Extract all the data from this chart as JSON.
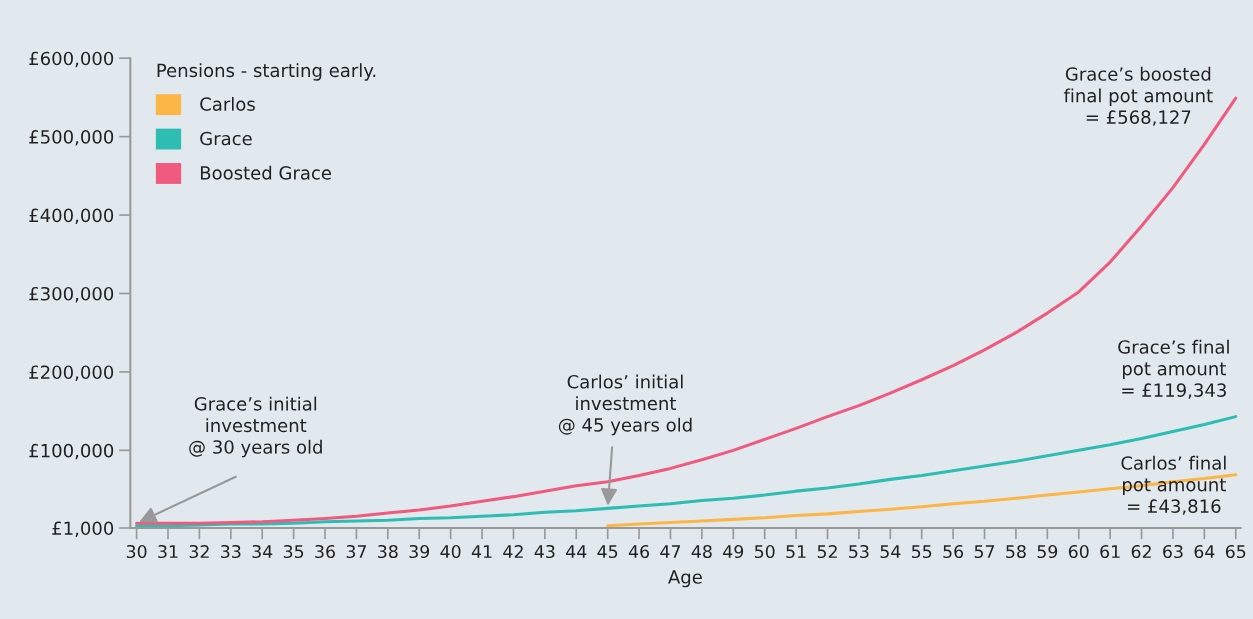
{
  "chart_data": {
    "type": "line",
    "xlabel": "Age",
    "legend_title": "Pensions - starting early.",
    "legend": "top left",
    "grid": false,
    "marker": "none",
    "line_style": "solid",
    "xlim": [
      29.8,
      65.15
    ],
    "xticks": [
      30,
      31,
      32,
      33,
      34,
      35,
      36,
      37,
      38,
      39,
      40,
      41,
      42,
      43,
      44,
      45,
      46,
      47,
      48,
      49,
      50,
      51,
      52,
      53,
      54,
      55,
      56,
      57,
      58,
      59,
      60,
      61,
      62,
      63,
      64,
      65
    ],
    "ylim": [
      1000,
      600000
    ],
    "yticks": [
      {
        "value": 1000,
        "label": "£1,000"
      },
      {
        "value": 100000,
        "label": "£100,000"
      },
      {
        "value": 200000,
        "label": "£200,000"
      },
      {
        "value": 300000,
        "label": "£300,000"
      },
      {
        "value": 400000,
        "label": "£400,000"
      },
      {
        "value": 500000,
        "label": "£500,000"
      },
      {
        "value": 600000,
        "label": "£600,000"
      }
    ],
    "series": [
      {
        "name": "Carlos",
        "color": "#fbb645",
        "x": [
          45,
          46,
          47,
          48,
          49,
          50,
          51,
          52,
          53,
          54,
          55,
          56,
          57,
          58,
          59,
          60,
          61,
          62,
          63,
          64,
          65
        ],
        "values": [
          4000,
          6000,
          8000,
          10000,
          12000,
          14000,
          17000,
          19000,
          22000,
          25000,
          28000,
          32000,
          35000,
          39000,
          43000,
          47000,
          51000,
          55000,
          60000,
          64000,
          69000
        ]
      },
      {
        "name": "Grace",
        "color": "#2dbdb3",
        "x": [
          30,
          31,
          32,
          33,
          34,
          35,
          36,
          37,
          38,
          39,
          40,
          41,
          42,
          43,
          44,
          45,
          46,
          47,
          48,
          49,
          50,
          51,
          52,
          53,
          54,
          55,
          56,
          57,
          58,
          59,
          60,
          61,
          62,
          63,
          64,
          65
        ],
        "values": [
          4000,
          4000,
          5000,
          6000,
          6000,
          7000,
          9000,
          10000,
          11000,
          13000,
          14000,
          16000,
          18000,
          21000,
          23000,
          26000,
          29000,
          32000,
          36000,
          39000,
          43000,
          48000,
          52000,
          57000,
          63000,
          68000,
          74000,
          80000,
          86000,
          93000,
          100000,
          107000,
          115000,
          124000,
          133000,
          143000
        ]
      },
      {
        "name": "Boosted Grace",
        "color": "#ef5a7e",
        "x": [
          30,
          31,
          32,
          33,
          34,
          35,
          36,
          37,
          38,
          39,
          40,
          41,
          42,
          43,
          44,
          45,
          46,
          47,
          48,
          49,
          50,
          51,
          52,
          53,
          54,
          55,
          56,
          57,
          58,
          59,
          60,
          61,
          62,
          63,
          64,
          65
        ],
        "values": [
          7000,
          7000,
          7000,
          8000,
          9000,
          11000,
          13000,
          16000,
          20000,
          24000,
          29000,
          35000,
          41000,
          48000,
          55000,
          60000,
          68000,
          77000,
          88000,
          100000,
          114000,
          128000,
          143000,
          157000,
          173000,
          190000,
          208000,
          228000,
          250000,
          275000,
          302000,
          340000,
          386000,
          435000,
          490000,
          549000
        ]
      }
    ],
    "annotations": [
      {
        "text": "Grace’s initial\ninvestment\n@ 30 years old",
        "x": 30,
        "y": 7000
      },
      {
        "text": "Carlos’ initial\ninvestment\n@ 45 years old",
        "x": 45,
        "y": 26000
      },
      "Grace’s boosted\nfinal pot amount\n= £568,127",
      "Grace’s final\npot amount\n= £119,343",
      "Carlos’ final\npot amount\n= £43,816"
    ]
  }
}
